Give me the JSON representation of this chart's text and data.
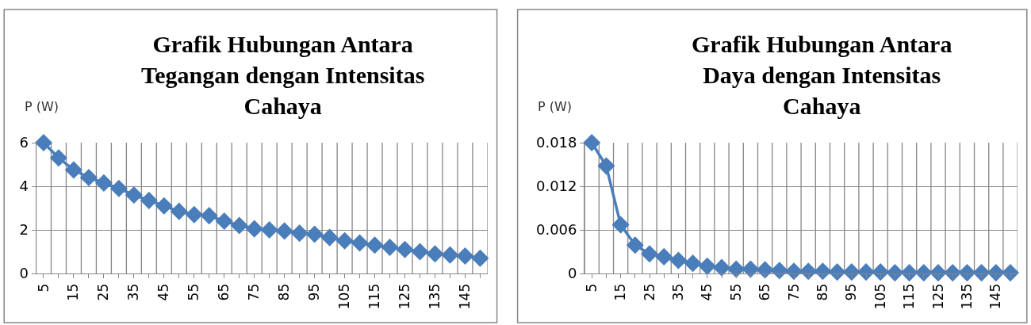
{
  "chart_data": [
    {
      "type": "line",
      "title": "Grafik Hubungan Antara\nTegangan dengan Intensitas\nCahaya",
      "ylabel": "P (W)",
      "categories": [
        "5",
        null,
        "15",
        null,
        "25",
        null,
        "35",
        null,
        "45",
        null,
        "55",
        null,
        "65",
        null,
        "75",
        null,
        "85",
        null,
        "95",
        null,
        "105",
        null,
        "115",
        null,
        "125",
        null,
        "135",
        null,
        "145",
        null
      ],
      "series": [
        {
          "color": "#4a7ebb",
          "values": [
            6.0,
            5.3,
            4.75,
            4.4,
            4.15,
            3.9,
            3.6,
            3.35,
            3.1,
            2.85,
            2.7,
            2.65,
            2.4,
            2.2,
            2.05,
            2.0,
            1.95,
            1.85,
            1.8,
            1.65,
            1.5,
            1.4,
            1.3,
            1.2,
            1.1,
            1.0,
            0.9,
            0.85,
            0.8,
            0.7
          ]
        }
      ],
      "ylim": [
        0,
        6
      ],
      "yticks": [
        0,
        2,
        4,
        6
      ],
      "grid": true,
      "marker": "diamond"
    },
    {
      "type": "line",
      "title": "Grafik Hubungan Antara\nDaya dengan Intensitas\nCahaya",
      "ylabel": "P (W)",
      "categories": [
        "5",
        null,
        "15",
        null,
        "25",
        null,
        "35",
        null,
        "45",
        null,
        "55",
        null,
        "65",
        null,
        "75",
        null,
        "85",
        null,
        "95",
        null,
        "105",
        null,
        "115",
        null,
        "125",
        null,
        "135",
        null,
        "145",
        null
      ],
      "series": [
        {
          "color": "#4a7ebb",
          "values": [
            0.018,
            0.0148,
            0.0067,
            0.0039,
            0.0027,
            0.0023,
            0.0018,
            0.0014,
            0.001,
            0.0008,
            0.0006,
            0.0006,
            0.0005,
            0.0004,
            0.0003,
            0.0003,
            0.0003,
            0.0002,
            0.0002,
            0.0002,
            0.0002,
            0.0001,
            0.0001,
            0.0001,
            0.0001,
            0.0001,
            0.0001,
            0.0001,
            0.0001,
            0.0001
          ]
        }
      ],
      "ylim": [
        0,
        0.018
      ],
      "yticks": [
        0,
        0.006,
        0.012,
        0.018
      ],
      "grid": true,
      "marker": "diamond"
    }
  ]
}
